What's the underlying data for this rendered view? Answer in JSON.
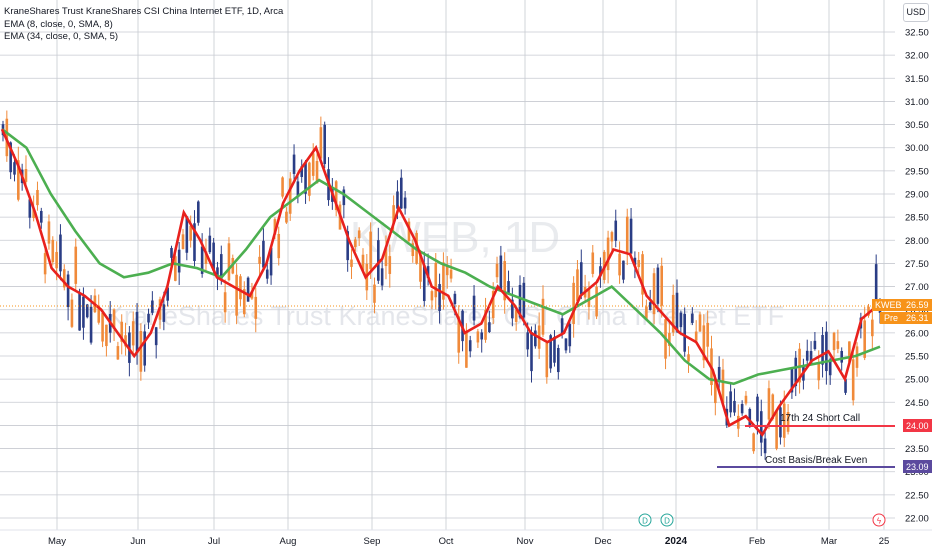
{
  "legend": {
    "title": "KraneShares Trust KraneShares CSI China Internet ETF, 1D, Arca",
    "ema1": "EMA (8, close, 0, SMA, 8)",
    "ema2": "EMA (34, close, 0, SMA, 5)"
  },
  "currency": "USD",
  "watermark": {
    "symbol": "KWEB, 1D",
    "name": "KraneShares Trust KraneShares CSI China Internet ETF"
  },
  "price_badges": {
    "last": {
      "label": "KWEB",
      "value": "26.59"
    },
    "pre": {
      "label": "Pre",
      "value": "26.31"
    },
    "level_short_call": "24.00",
    "level_cost_basis": "23.09"
  },
  "annotations": {
    "short_call": "17th 24 Short Call",
    "cost_basis": "Cost Basis/Break Even"
  },
  "markers": {
    "dividend": "D",
    "earnings": "D",
    "flash": "ϟ"
  },
  "colors": {
    "up": "#2a3d85",
    "down": "#f08a3a",
    "ema_fast": "#e8211d",
    "ema_slow": "#4caf50",
    "level_red": "#f23645",
    "level_purple": "#5b4a9e",
    "last_badge": "#f7931a"
  },
  "chart_data": {
    "type": "candlestick",
    "y_ticks": [
      "32.50",
      "32.00",
      "31.50",
      "31.00",
      "30.50",
      "30.00",
      "29.50",
      "29.00",
      "28.50",
      "28.00",
      "27.50",
      "27.00",
      "26.50",
      "26.00",
      "25.50",
      "25.00",
      "24.50",
      "24.00",
      "23.50",
      "23.00",
      "22.50",
      "22.00"
    ],
    "ylim": [
      21.7,
      32.8
    ],
    "x_ticks": [
      "May",
      "Jun",
      "Jul",
      "Aug",
      "Sep",
      "Oct",
      "Nov",
      "Dec",
      "2024",
      "Feb",
      "Mar",
      "25"
    ],
    "levels": [
      24.0,
      23.09
    ],
    "ema_fast": [
      30.4,
      29.6,
      28.6,
      27.4,
      27.0,
      26.8,
      26.5,
      26.0,
      25.5,
      26.0,
      27.0,
      28.6,
      28.0,
      27.2,
      27.0,
      26.8,
      27.5,
      28.8,
      29.5,
      30.0,
      29.0,
      28.0,
      27.2,
      27.6,
      28.7,
      28.0,
      27.0,
      26.8,
      26.0,
      26.2,
      27.0,
      26.6,
      26.0,
      25.8,
      26.0,
      26.8,
      27.1,
      27.8,
      27.7,
      26.8,
      26.4,
      26.0,
      25.8,
      25.2,
      24.0,
      24.2,
      23.8,
      24.4,
      24.9,
      25.4,
      25.6,
      25.0,
      26.3,
      26.6
    ],
    "ema_slow": [
      30.4,
      30.0,
      29.0,
      28.2,
      27.5,
      27.2,
      27.3,
      27.5,
      27.4,
      27.2,
      27.8,
      28.5,
      28.9,
      29.3,
      29.0,
      28.6,
      28.2,
      27.8,
      27.5,
      27.3,
      27.0,
      26.8,
      26.6,
      26.4,
      26.7,
      27.0,
      26.5,
      26.0,
      25.4,
      25.0,
      24.9,
      25.1,
      25.2,
      25.3,
      25.4,
      25.5,
      25.7
    ]
  }
}
